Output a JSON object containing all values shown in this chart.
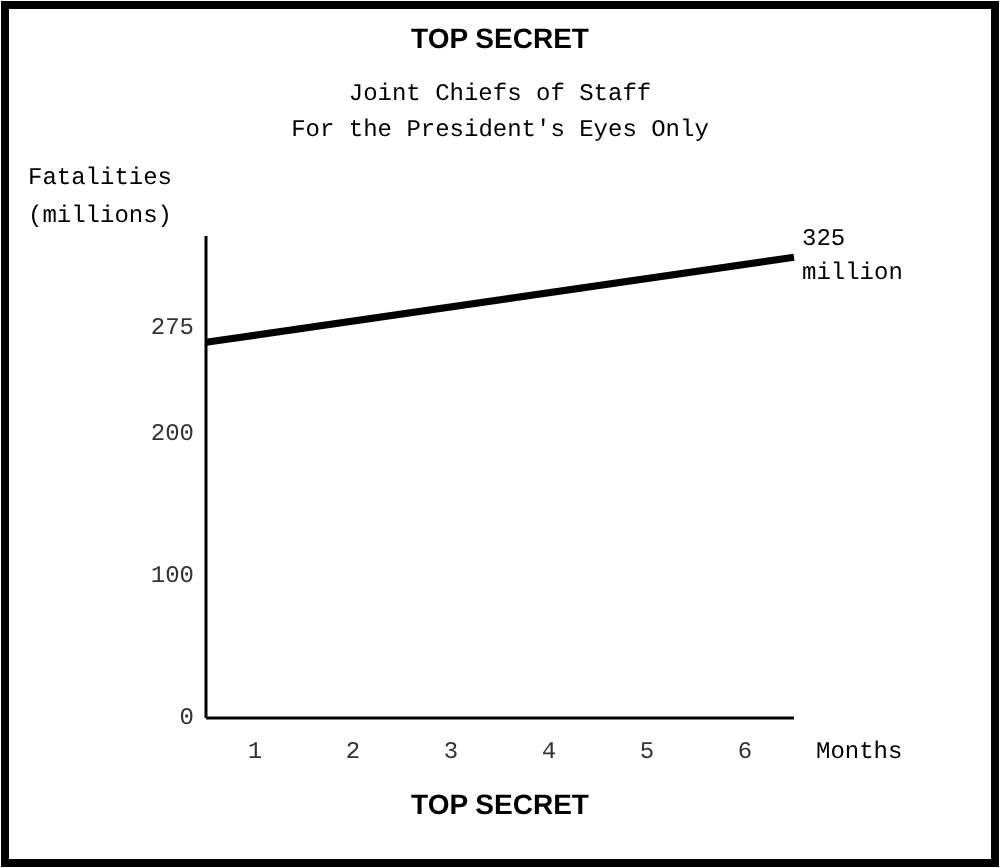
{
  "chart_data": {
    "type": "line",
    "title": "TOP SECRET",
    "subtitle": "Joint Chiefs of Staff\nFor the President's Eyes Only",
    "xlabel": "Months",
    "ylabel": "Fatalities\n(millions)",
    "x": [
      0.5,
      6.5
    ],
    "series": [
      {
        "color": "#000000",
        "values": [
          265,
          325
        ]
      }
    ],
    "xlim": [
      0.5,
      6.5
    ],
    "xticks": [
      1,
      2,
      3,
      4,
      5,
      6
    ],
    "ylim": [
      0,
      340
    ],
    "yticks": [
      0,
      100,
      200,
      275
    ],
    "annotations": [
      {
        "text": "325 million",
        "x": 6.5,
        "y": 325
      },
      "TOP SECRET"
    ],
    "grid": false,
    "marker": "none",
    "line_style": "solid"
  }
}
